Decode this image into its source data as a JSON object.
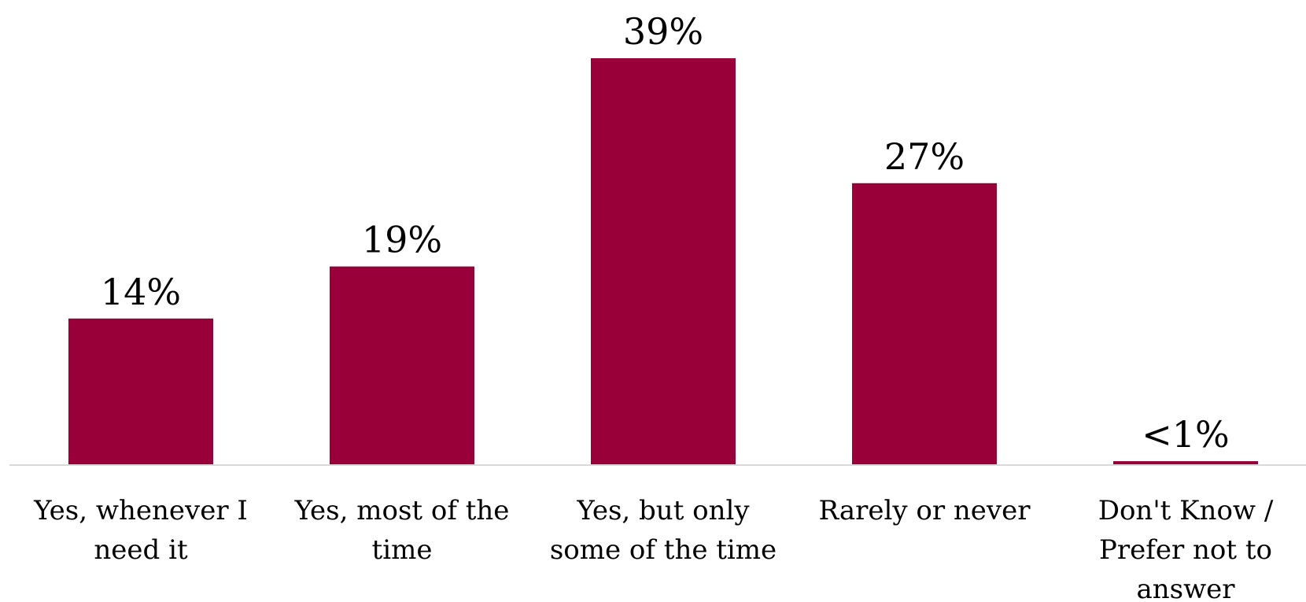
{
  "chart_data": {
    "type": "bar",
    "categories": [
      [
        "Yes, whenever I",
        "need it"
      ],
      [
        "Yes, most of the",
        "time"
      ],
      [
        "Yes, but only",
        "some of the time"
      ],
      [
        "Rarely or never"
      ],
      [
        "Don't Know /",
        "Prefer not to",
        "answer"
      ]
    ],
    "values": [
      14,
      19,
      39,
      27,
      0.3
    ],
    "data_labels": [
      "14%",
      "19%",
      "39%",
      "27%",
      "<1%"
    ],
    "title": "",
    "xlabel": "",
    "ylabel": "",
    "ylim": [
      0,
      40
    ],
    "grid": false,
    "legend": "none",
    "bar_color": "#99003a"
  }
}
